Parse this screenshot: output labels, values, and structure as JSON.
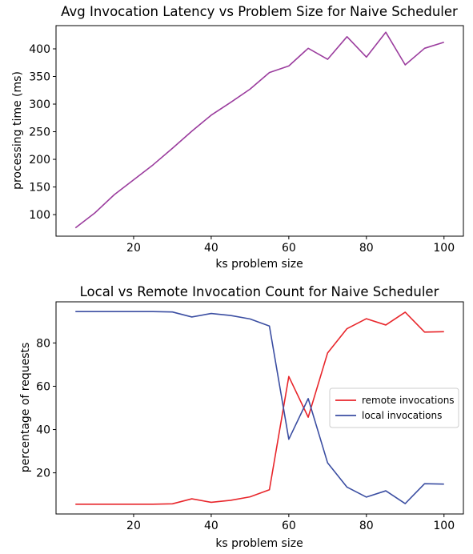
{
  "chart_data": [
    {
      "type": "line",
      "title": "Avg Invocation Latency vs Problem Size for Naive Scheduler",
      "xlabel": "ks problem size",
      "ylabel": "processing time (ms)",
      "xlim": [
        0,
        105
      ],
      "ylim": [
        61,
        442
      ],
      "xticks": [
        20,
        40,
        60,
        80,
        100
      ],
      "yticks": [
        100,
        150,
        200,
        250,
        300,
        350,
        400
      ],
      "grid": false,
      "legend": null,
      "series": [
        {
          "color": "#9b3d9e",
          "x": [
            5,
            10,
            15,
            20,
            25,
            30,
            35,
            40,
            45,
            50,
            55,
            60,
            65,
            70,
            75,
            80,
            85,
            90,
            95,
            100
          ],
          "y": [
            76,
            103,
            136,
            163,
            190,
            220,
            251,
            280,
            303,
            327,
            357,
            369,
            401,
            381,
            422,
            385,
            430,
            371,
            401,
            412
          ]
        }
      ]
    },
    {
      "type": "line",
      "title": "Local vs Remote Invocation Count for Naive Scheduler",
      "xlabel": "ks problem size",
      "ylabel": "percentage of requests",
      "xlim": [
        0,
        105
      ],
      "ylim": [
        1,
        99
      ],
      "xticks": [
        20,
        40,
        60,
        80,
        100
      ],
      "yticks": [
        20,
        40,
        60,
        80
      ],
      "grid": false,
      "legend": "center-right",
      "series": [
        {
          "name": "remote invocations",
          "color": "#e8262b",
          "x": [
            5,
            10,
            15,
            20,
            25,
            30,
            35,
            40,
            45,
            50,
            55,
            60,
            65,
            70,
            75,
            80,
            85,
            90,
            95,
            100
          ],
          "y": [
            5.5,
            5.5,
            5.5,
            5.5,
            5.5,
            5.7,
            8,
            6.4,
            7.3,
            8.9,
            12.2,
            64.5,
            45.7,
            75.4,
            86.6,
            91.2,
            88.3,
            94.2,
            85,
            85.2
          ]
        },
        {
          "name": "local invocations",
          "color": "#3b4ea2",
          "x": [
            5,
            10,
            15,
            20,
            25,
            30,
            35,
            40,
            45,
            50,
            55,
            60,
            65,
            70,
            75,
            80,
            85,
            90,
            95,
            100
          ],
          "y": [
            94.5,
            94.5,
            94.5,
            94.5,
            94.5,
            94.3,
            92,
            93.6,
            92.7,
            91.1,
            87.8,
            35.5,
            54.3,
            24.6,
            13.4,
            8.8,
            11.7,
            5.8,
            15,
            14.8
          ]
        }
      ]
    }
  ]
}
